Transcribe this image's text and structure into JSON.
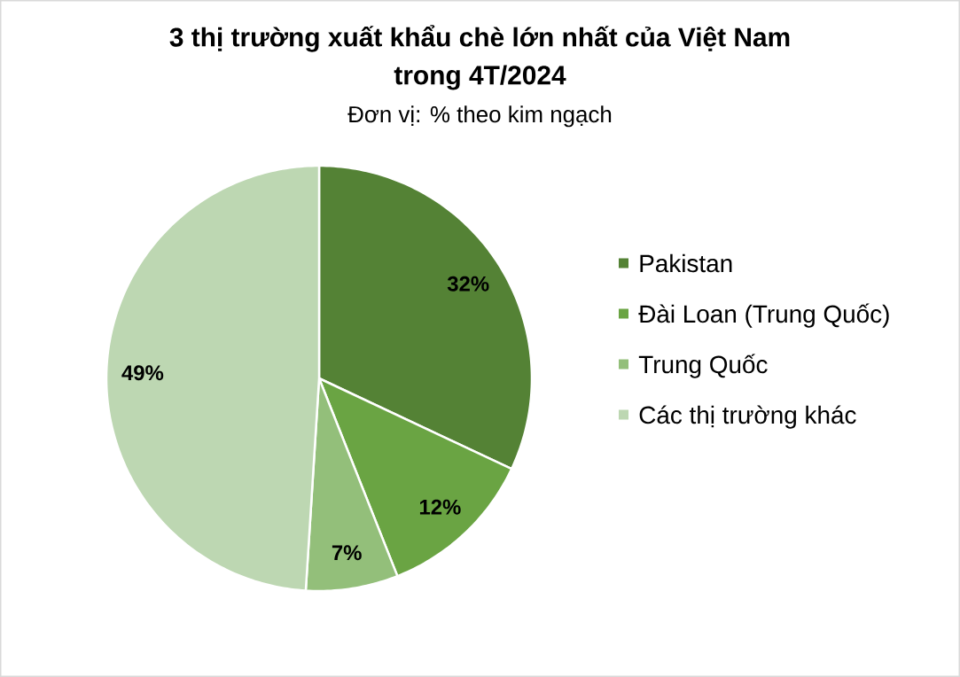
{
  "chart_data": {
    "type": "pie",
    "title": "3 thị trường xuất khẩu chè lớn nhất của Việt Nam trong 4T/2024",
    "subtitle": "Đơn vị: % theo kim ngạch",
    "categories": [
      "Pakistan",
      "Đài Loan (Trung Quốc)",
      "Trung Quốc",
      "Các thị trường khác"
    ],
    "values": [
      32,
      12,
      7,
      49
    ],
    "colors": [
      "#548235",
      "#6aa443",
      "#93bf7a",
      "#bdd7b2"
    ],
    "value_labels": [
      "32%",
      "12%",
      "7%",
      "49%"
    ],
    "legend": "right"
  }
}
